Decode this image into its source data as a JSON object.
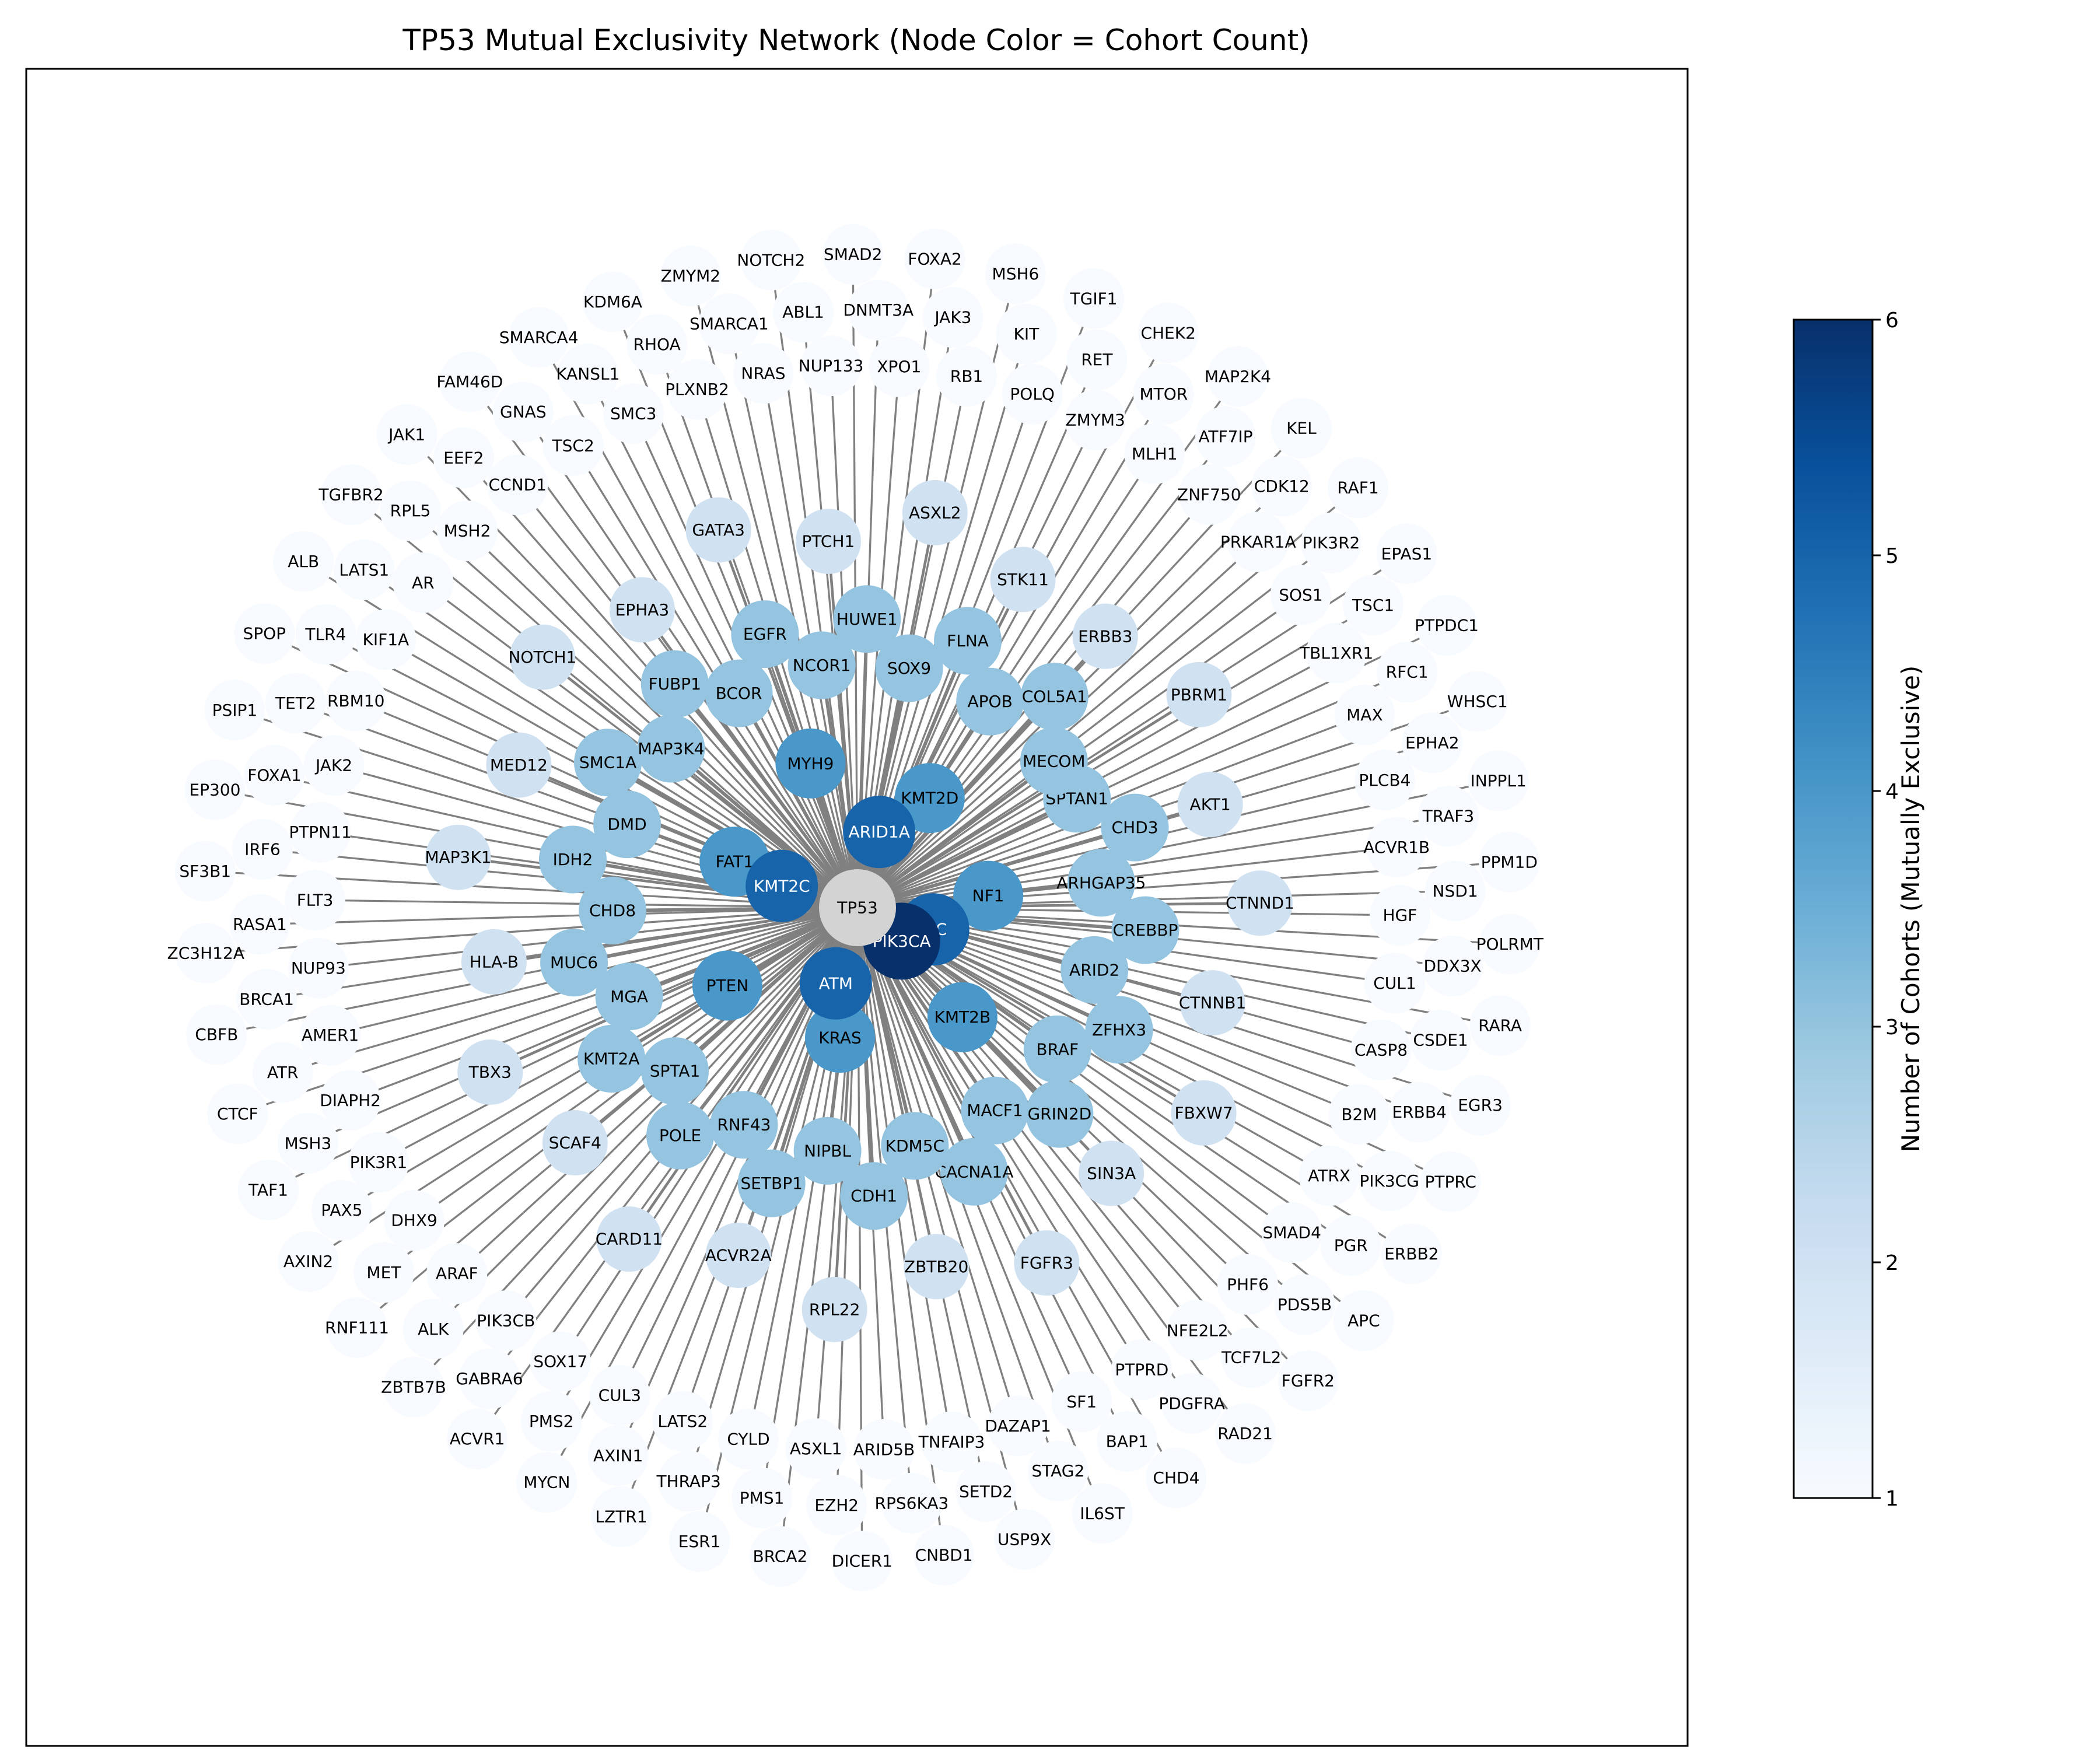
{
  "title": "TP53 Mutual Exclusivity Network (Node Color = Cohort Count)",
  "colorbar": {
    "label": "Number of Cohorts (Mutually Exclusive)",
    "min": 1,
    "max": 6,
    "ticks": [
      "1",
      "2",
      "3",
      "4",
      "5",
      "6"
    ],
    "colors": [
      "#f7fbff",
      "#deebf7",
      "#c6dbef",
      "#9ecae1",
      "#6baed6",
      "#4292c6",
      "#2171b5",
      "#08519c",
      "#08306b"
    ]
  },
  "style": {
    "edge_color": "#808080",
    "center_node_color": "#d3d3d3"
  },
  "center": {
    "label": "TP53"
  },
  "nodes": [
    {
      "label": "PIK3CA",
      "count": 6
    },
    {
      "label": "CIC",
      "count": 5
    },
    {
      "label": "ATM",
      "count": 5
    },
    {
      "label": "KMT2C",
      "count": 5
    },
    {
      "label": "ARID1A",
      "count": 5
    },
    {
      "label": "NF1",
      "count": 4
    },
    {
      "label": "KMT2B",
      "count": 4
    },
    {
      "label": "KRAS",
      "count": 4
    },
    {
      "label": "PTEN",
      "count": 4
    },
    {
      "label": "FAT1",
      "count": 4
    },
    {
      "label": "MYH9",
      "count": 4
    },
    {
      "label": "KMT2D",
      "count": 4
    },
    {
      "label": "SPTAN1",
      "count": 3
    },
    {
      "label": "CHD3",
      "count": 3
    },
    {
      "label": "ARHGAP35",
      "count": 3
    },
    {
      "label": "CREBBP",
      "count": 3
    },
    {
      "label": "ARID2",
      "count": 3
    },
    {
      "label": "ZFHX3",
      "count": 3
    },
    {
      "label": "BRAF",
      "count": 3
    },
    {
      "label": "GRIN2D",
      "count": 3
    },
    {
      "label": "MACF1",
      "count": 3
    },
    {
      "label": "CACNA1A",
      "count": 3
    },
    {
      "label": "KDM5C",
      "count": 3
    },
    {
      "label": "CDH1",
      "count": 3
    },
    {
      "label": "NIPBL",
      "count": 3
    },
    {
      "label": "SETBP1",
      "count": 3
    },
    {
      "label": "RNF43",
      "count": 3
    },
    {
      "label": "POLE",
      "count": 3
    },
    {
      "label": "SPTA1",
      "count": 3
    },
    {
      "label": "KMT2A",
      "count": 3
    },
    {
      "label": "MGA",
      "count": 3
    },
    {
      "label": "MUC6",
      "count": 3
    },
    {
      "label": "CHD8",
      "count": 3
    },
    {
      "label": "IDH2",
      "count": 3
    },
    {
      "label": "DMD",
      "count": 3
    },
    {
      "label": "SMC1A",
      "count": 3
    },
    {
      "label": "MAP3K4",
      "count": 3
    },
    {
      "label": "FUBP1",
      "count": 3
    },
    {
      "label": "BCOR",
      "count": 3
    },
    {
      "label": "EGFR",
      "count": 3
    },
    {
      "label": "NCOR1",
      "count": 3
    },
    {
      "label": "HUWE1",
      "count": 3
    },
    {
      "label": "SOX9",
      "count": 3
    },
    {
      "label": "FLNA",
      "count": 3
    },
    {
      "label": "APOB",
      "count": 3
    },
    {
      "label": "COL5A1",
      "count": 3
    },
    {
      "label": "MECOM",
      "count": 3
    },
    {
      "label": "ERBB3",
      "count": 2
    },
    {
      "label": "PBRM1",
      "count": 2
    },
    {
      "label": "AKT1",
      "count": 2
    },
    {
      "label": "CTNND1",
      "count": 2
    },
    {
      "label": "CTNNB1",
      "count": 2
    },
    {
      "label": "FBXW7",
      "count": 2
    },
    {
      "label": "SIN3A",
      "count": 2
    },
    {
      "label": "FGFR3",
      "count": 2
    },
    {
      "label": "ZBTB20",
      "count": 2
    },
    {
      "label": "RPL22",
      "count": 2
    },
    {
      "label": "ACVR2A",
      "count": 2
    },
    {
      "label": "CARD11",
      "count": 2
    },
    {
      "label": "SCAF4",
      "count": 2
    },
    {
      "label": "TBX3",
      "count": 2
    },
    {
      "label": "HLA-B",
      "count": 2
    },
    {
      "label": "MAP3K1",
      "count": 2
    },
    {
      "label": "MED12",
      "count": 2
    },
    {
      "label": "NOTCH1",
      "count": 2
    },
    {
      "label": "EPHA3",
      "count": 2
    },
    {
      "label": "GATA3",
      "count": 2
    },
    {
      "label": "PTCH1",
      "count": 2
    },
    {
      "label": "ASXL2",
      "count": 2
    },
    {
      "label": "STK11",
      "count": 2
    },
    {
      "label": "TGIF1",
      "count": 1
    },
    {
      "label": "RET",
      "count": 1
    },
    {
      "label": "ZMYM3",
      "count": 1
    },
    {
      "label": "CHEK2",
      "count": 1
    },
    {
      "label": "MTOR",
      "count": 1
    },
    {
      "label": "MLH1",
      "count": 1
    },
    {
      "label": "MAP2K4",
      "count": 1
    },
    {
      "label": "ATF7IP",
      "count": 1
    },
    {
      "label": "ZNF750",
      "count": 1
    },
    {
      "label": "KEL",
      "count": 1
    },
    {
      "label": "CDK12",
      "count": 1
    },
    {
      "label": "PRKAR1A",
      "count": 1
    },
    {
      "label": "RAF1",
      "count": 1
    },
    {
      "label": "PIK3R2",
      "count": 1
    },
    {
      "label": "SOS1",
      "count": 1
    },
    {
      "label": "EPAS1",
      "count": 1
    },
    {
      "label": "TSC1",
      "count": 1
    },
    {
      "label": "TBL1XR1",
      "count": 1
    },
    {
      "label": "PTPDC1",
      "count": 1
    },
    {
      "label": "RFC1",
      "count": 1
    },
    {
      "label": "MAX",
      "count": 1
    },
    {
      "label": "WHSC1",
      "count": 1
    },
    {
      "label": "EPHA2",
      "count": 1
    },
    {
      "label": "PLCB4",
      "count": 1
    },
    {
      "label": "INPPL1",
      "count": 1
    },
    {
      "label": "TRAF3",
      "count": 1
    },
    {
      "label": "ACVR1B",
      "count": 1
    },
    {
      "label": "PPM1D",
      "count": 1
    },
    {
      "label": "NSD1",
      "count": 1
    },
    {
      "label": "HGF",
      "count": 1
    },
    {
      "label": "POLRMT",
      "count": 1
    },
    {
      "label": "DDX3X",
      "count": 1
    },
    {
      "label": "CUL1",
      "count": 1
    },
    {
      "label": "RARA",
      "count": 1
    },
    {
      "label": "CSDE1",
      "count": 1
    },
    {
      "label": "CASP8",
      "count": 1
    },
    {
      "label": "EGR3",
      "count": 1
    },
    {
      "label": "ERBB4",
      "count": 1
    },
    {
      "label": "B2M",
      "count": 1
    },
    {
      "label": "PTPRC",
      "count": 1
    },
    {
      "label": "PIK3CG",
      "count": 1
    },
    {
      "label": "ATRX",
      "count": 1
    },
    {
      "label": "ERBB2",
      "count": 1
    },
    {
      "label": "PGR",
      "count": 1
    },
    {
      "label": "SMAD4",
      "count": 1
    },
    {
      "label": "APC",
      "count": 1
    },
    {
      "label": "PDS5B",
      "count": 1
    },
    {
      "label": "PHF6",
      "count": 1
    },
    {
      "label": "FGFR2",
      "count": 1
    },
    {
      "label": "TCF7L2",
      "count": 1
    },
    {
      "label": "NFE2L2",
      "count": 1
    },
    {
      "label": "RAD21",
      "count": 1
    },
    {
      "label": "PDGFRA",
      "count": 1
    },
    {
      "label": "PTPRD",
      "count": 1
    },
    {
      "label": "CHD4",
      "count": 1
    },
    {
      "label": "BAP1",
      "count": 1
    },
    {
      "label": "SF1",
      "count": 1
    },
    {
      "label": "IL6ST",
      "count": 1
    },
    {
      "label": "STAG2",
      "count": 1
    },
    {
      "label": "DAZAP1",
      "count": 1
    },
    {
      "label": "USP9X",
      "count": 1
    },
    {
      "label": "SETD2",
      "count": 1
    },
    {
      "label": "TNFAIP3",
      "count": 1
    },
    {
      "label": "CNBD1",
      "count": 1
    },
    {
      "label": "RPS6KA3",
      "count": 1
    },
    {
      "label": "ARID5B",
      "count": 1
    },
    {
      "label": "DICER1",
      "count": 1
    },
    {
      "label": "EZH2",
      "count": 1
    },
    {
      "label": "ASXL1",
      "count": 1
    },
    {
      "label": "BRCA2",
      "count": 1
    },
    {
      "label": "PMS1",
      "count": 1
    },
    {
      "label": "CYLD",
      "count": 1
    },
    {
      "label": "ESR1",
      "count": 1
    },
    {
      "label": "THRAP3",
      "count": 1
    },
    {
      "label": "LATS2",
      "count": 1
    },
    {
      "label": "LZTR1",
      "count": 1
    },
    {
      "label": "AXIN1",
      "count": 1
    },
    {
      "label": "CUL3",
      "count": 1
    },
    {
      "label": "MYCN",
      "count": 1
    },
    {
      "label": "PMS2",
      "count": 1
    },
    {
      "label": "SOX17",
      "count": 1
    },
    {
      "label": "ACVR1",
      "count": 1
    },
    {
      "label": "GABRA6",
      "count": 1
    },
    {
      "label": "PIK3CB",
      "count": 1
    },
    {
      "label": "ZBTB7B",
      "count": 1
    },
    {
      "label": "ALK",
      "count": 1
    },
    {
      "label": "ARAF",
      "count": 1
    },
    {
      "label": "RNF111",
      "count": 1
    },
    {
      "label": "MET",
      "count": 1
    },
    {
      "label": "DHX9",
      "count": 1
    },
    {
      "label": "AXIN2",
      "count": 1
    },
    {
      "label": "PAX5",
      "count": 1
    },
    {
      "label": "PIK3R1",
      "count": 1
    },
    {
      "label": "TAF1",
      "count": 1
    },
    {
      "label": "MSH3",
      "count": 1
    },
    {
      "label": "DIAPH2",
      "count": 1
    },
    {
      "label": "CTCF",
      "count": 1
    },
    {
      "label": "ATR",
      "count": 1
    },
    {
      "label": "AMER1",
      "count": 1
    },
    {
      "label": "CBFB",
      "count": 1
    },
    {
      "label": "BRCA1",
      "count": 1
    },
    {
      "label": "NUP93",
      "count": 1
    },
    {
      "label": "ZC3H12A",
      "count": 1
    },
    {
      "label": "RASA1",
      "count": 1
    },
    {
      "label": "FLT3",
      "count": 1
    },
    {
      "label": "SF3B1",
      "count": 1
    },
    {
      "label": "IRF6",
      "count": 1
    },
    {
      "label": "PTPN11",
      "count": 1
    },
    {
      "label": "EP300",
      "count": 1
    },
    {
      "label": "FOXA1",
      "count": 1
    },
    {
      "label": "JAK2",
      "count": 1
    },
    {
      "label": "PSIP1",
      "count": 1
    },
    {
      "label": "TET2",
      "count": 1
    },
    {
      "label": "RBM10",
      "count": 1
    },
    {
      "label": "SPOP",
      "count": 1
    },
    {
      "label": "TLR4",
      "count": 1
    },
    {
      "label": "KIF1A",
      "count": 1
    },
    {
      "label": "ALB",
      "count": 1
    },
    {
      "label": "LATS1",
      "count": 1
    },
    {
      "label": "AR",
      "count": 1
    },
    {
      "label": "TGFBR2",
      "count": 1
    },
    {
      "label": "RPL5",
      "count": 1
    },
    {
      "label": "MSH2",
      "count": 1
    },
    {
      "label": "JAK1",
      "count": 1
    },
    {
      "label": "EEF2",
      "count": 1
    },
    {
      "label": "CCND1",
      "count": 1
    },
    {
      "label": "FAM46D",
      "count": 1
    },
    {
      "label": "GNAS",
      "count": 1
    },
    {
      "label": "TSC2",
      "count": 1
    },
    {
      "label": "SMARCA4",
      "count": 1
    },
    {
      "label": "KANSL1",
      "count": 1
    },
    {
      "label": "SMC3",
      "count": 1
    },
    {
      "label": "KDM6A",
      "count": 1
    },
    {
      "label": "RHOA",
      "count": 1
    },
    {
      "label": "PLXNB2",
      "count": 1
    },
    {
      "label": "ZMYM2",
      "count": 1
    },
    {
      "label": "SMARCA1",
      "count": 1
    },
    {
      "label": "NRAS",
      "count": 1
    },
    {
      "label": "NOTCH2",
      "count": 1
    },
    {
      "label": "ABL1",
      "count": 1
    },
    {
      "label": "NUP133",
      "count": 1
    },
    {
      "label": "SMAD2",
      "count": 1
    },
    {
      "label": "DNMT3A",
      "count": 1
    },
    {
      "label": "XPO1",
      "count": 1
    },
    {
      "label": "FOXA2",
      "count": 1
    },
    {
      "label": "JAK3",
      "count": 1
    },
    {
      "label": "RB1",
      "count": 1
    },
    {
      "label": "MSH6",
      "count": 1
    },
    {
      "label": "KIT",
      "count": 1
    },
    {
      "label": "POLQ",
      "count": 1
    }
  ]
}
